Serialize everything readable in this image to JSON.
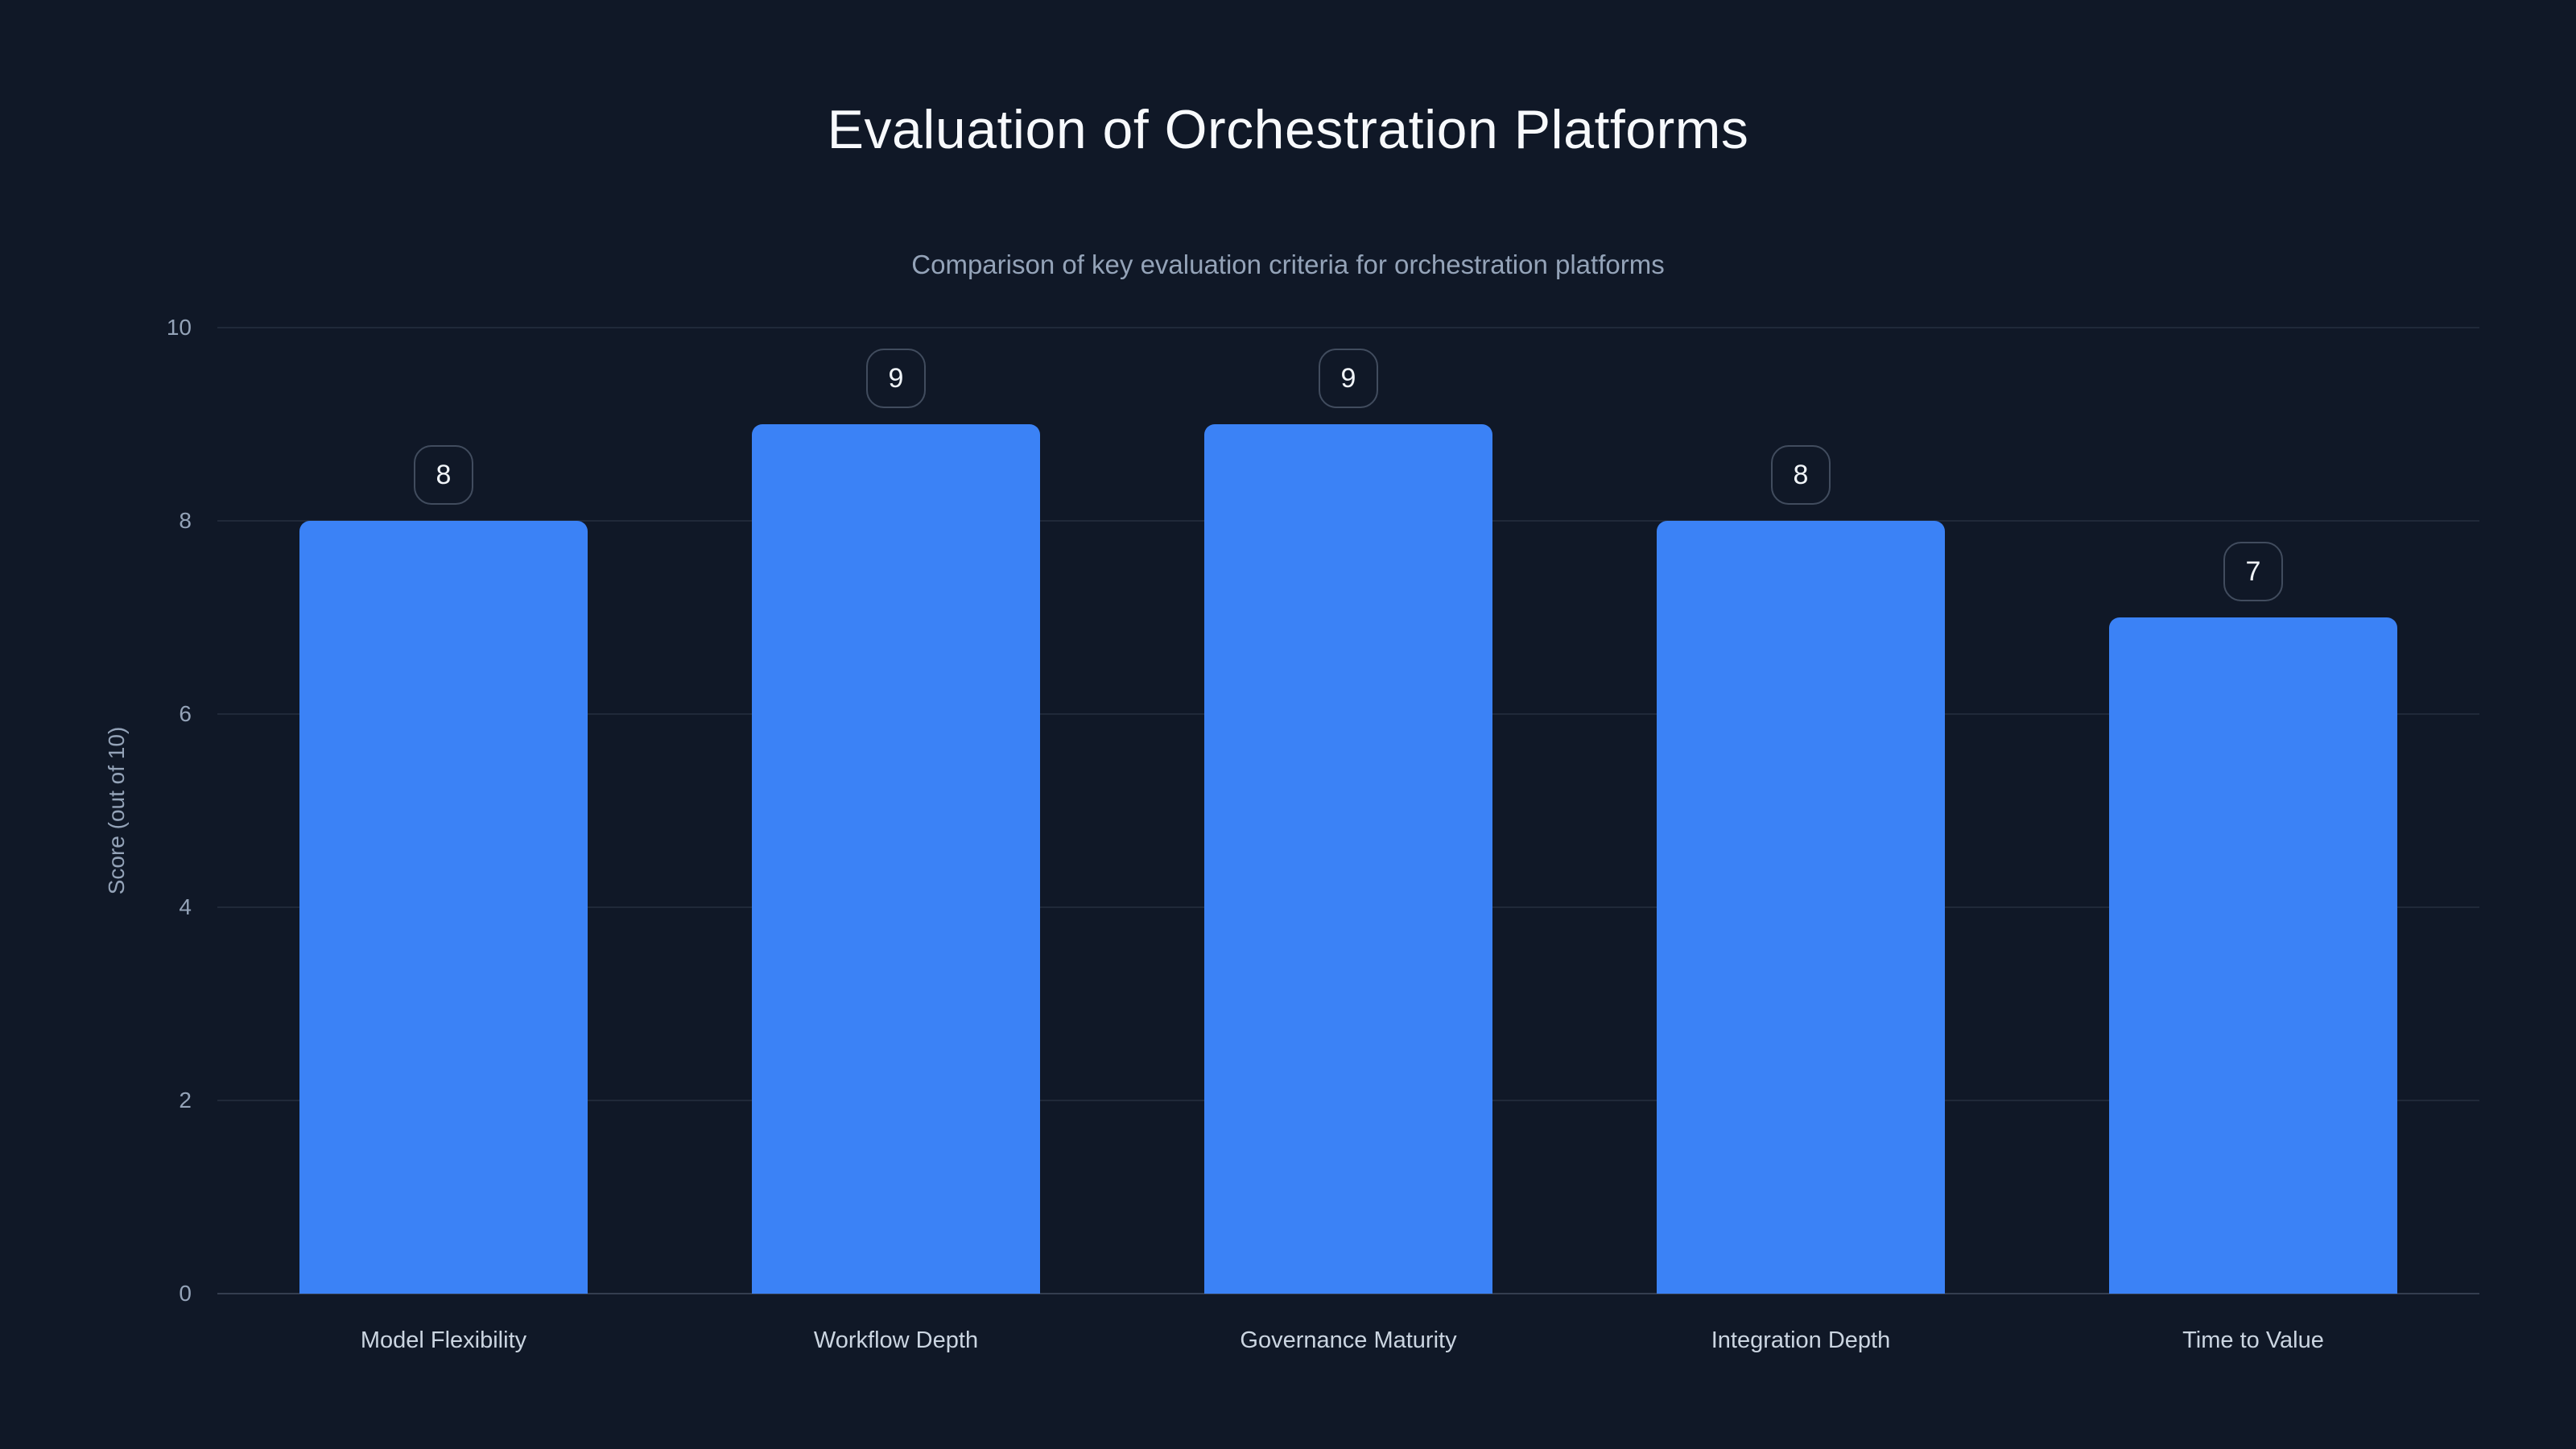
{
  "chart": {
    "title": "Evaluation of Orchestration Platforms",
    "subtitle": "Comparison of key evaluation criteria for orchestration platforms",
    "ylabel": "Score (out of 10)"
  },
  "chart_data": {
    "type": "bar",
    "title": "Evaluation of Orchestration Platforms",
    "subtitle": "Comparison of key evaluation criteria for orchestration platforms",
    "categories": [
      "Model Flexibility",
      "Workflow Depth",
      "Governance Maturity",
      "Integration Depth",
      "Time to Value"
    ],
    "values": [
      8,
      9,
      9,
      8,
      7
    ],
    "data_labels": [
      "8",
      "9",
      "9",
      "8",
      "7"
    ],
    "xlabel": "",
    "ylabel": "Score (out of 10)",
    "ylim": [
      0,
      10
    ],
    "yticks": [
      0,
      2,
      4,
      6,
      8,
      10
    ],
    "grid": true,
    "legend": false,
    "colors": {
      "background": "#101827",
      "bar": "#3b82f6",
      "title_text": "#f7f9fc",
      "subtitle_text": "#94a3b8",
      "tick_text": "#94a3b8",
      "category_text": "#cbd5e1",
      "badge_border": "rgba(148,163,184,0.38)",
      "badge_text": "#f1f5f9",
      "gridline": "rgba(148,163,184,0.13)",
      "baseline": "rgba(148,163,184,0.28)"
    }
  }
}
